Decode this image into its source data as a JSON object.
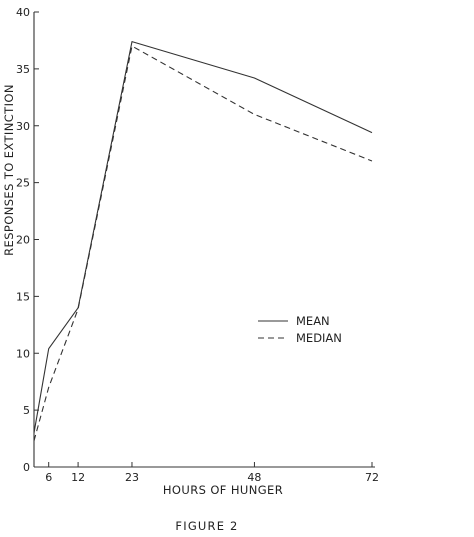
{
  "chart_data": {
    "type": "line",
    "title": "",
    "caption": "FIGURE 2",
    "xlabel": "HOURS OF HUNGER",
    "ylabel": "RESPONSES TO EXTINCTION",
    "x": [
      3,
      6,
      12,
      23,
      48,
      72
    ],
    "x_ticks": [
      6,
      12,
      23,
      48,
      72
    ],
    "y_ticks": [
      0,
      5,
      10,
      15,
      20,
      25,
      30,
      35,
      40
    ],
    "xlim": [
      3,
      72
    ],
    "ylim": [
      0,
      40
    ],
    "grid": false,
    "legend_position": "right-middle",
    "series": [
      {
        "name": "MEAN",
        "style": "solid",
        "values": [
          3.0,
          10.4,
          14.0,
          37.4,
          34.2,
          29.4
        ]
      },
      {
        "name": "MEDIAN",
        "style": "dashed",
        "values": [
          2.3,
          7.0,
          13.9,
          37.0,
          31.0,
          26.9
        ]
      }
    ],
    "colors": {
      "line": "#333333",
      "axis": "#333333",
      "text": "#222222"
    }
  }
}
